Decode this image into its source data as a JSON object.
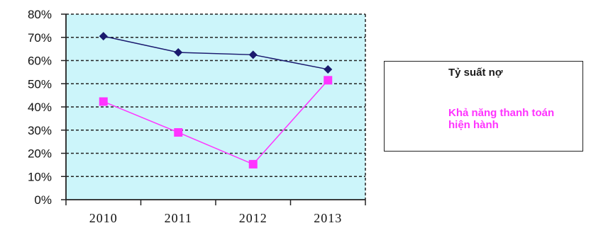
{
  "chart_data": {
    "type": "line",
    "categories": [
      "2010",
      "2011",
      "2012",
      "2013"
    ],
    "y_tick_labels": [
      "0%",
      "10%",
      "20%",
      "30%",
      "40%",
      "50%",
      "60%",
      "70%",
      "80%"
    ],
    "ylim": [
      0,
      80
    ],
    "grid": true,
    "legend_position": "right",
    "plot_background": "#ccf5fa",
    "series": [
      {
        "name": "Tỷ suất nợ",
        "values": [
          70.5,
          63.5,
          62.5,
          56.2
        ],
        "color": "#1a1a6e",
        "marker": "diamond"
      },
      {
        "name": "Khả năng thanh toán hiện hành",
        "values": [
          42.3,
          29.0,
          15.3,
          51.5
        ],
        "color": "#ff33ff",
        "marker": "square"
      }
    ]
  }
}
